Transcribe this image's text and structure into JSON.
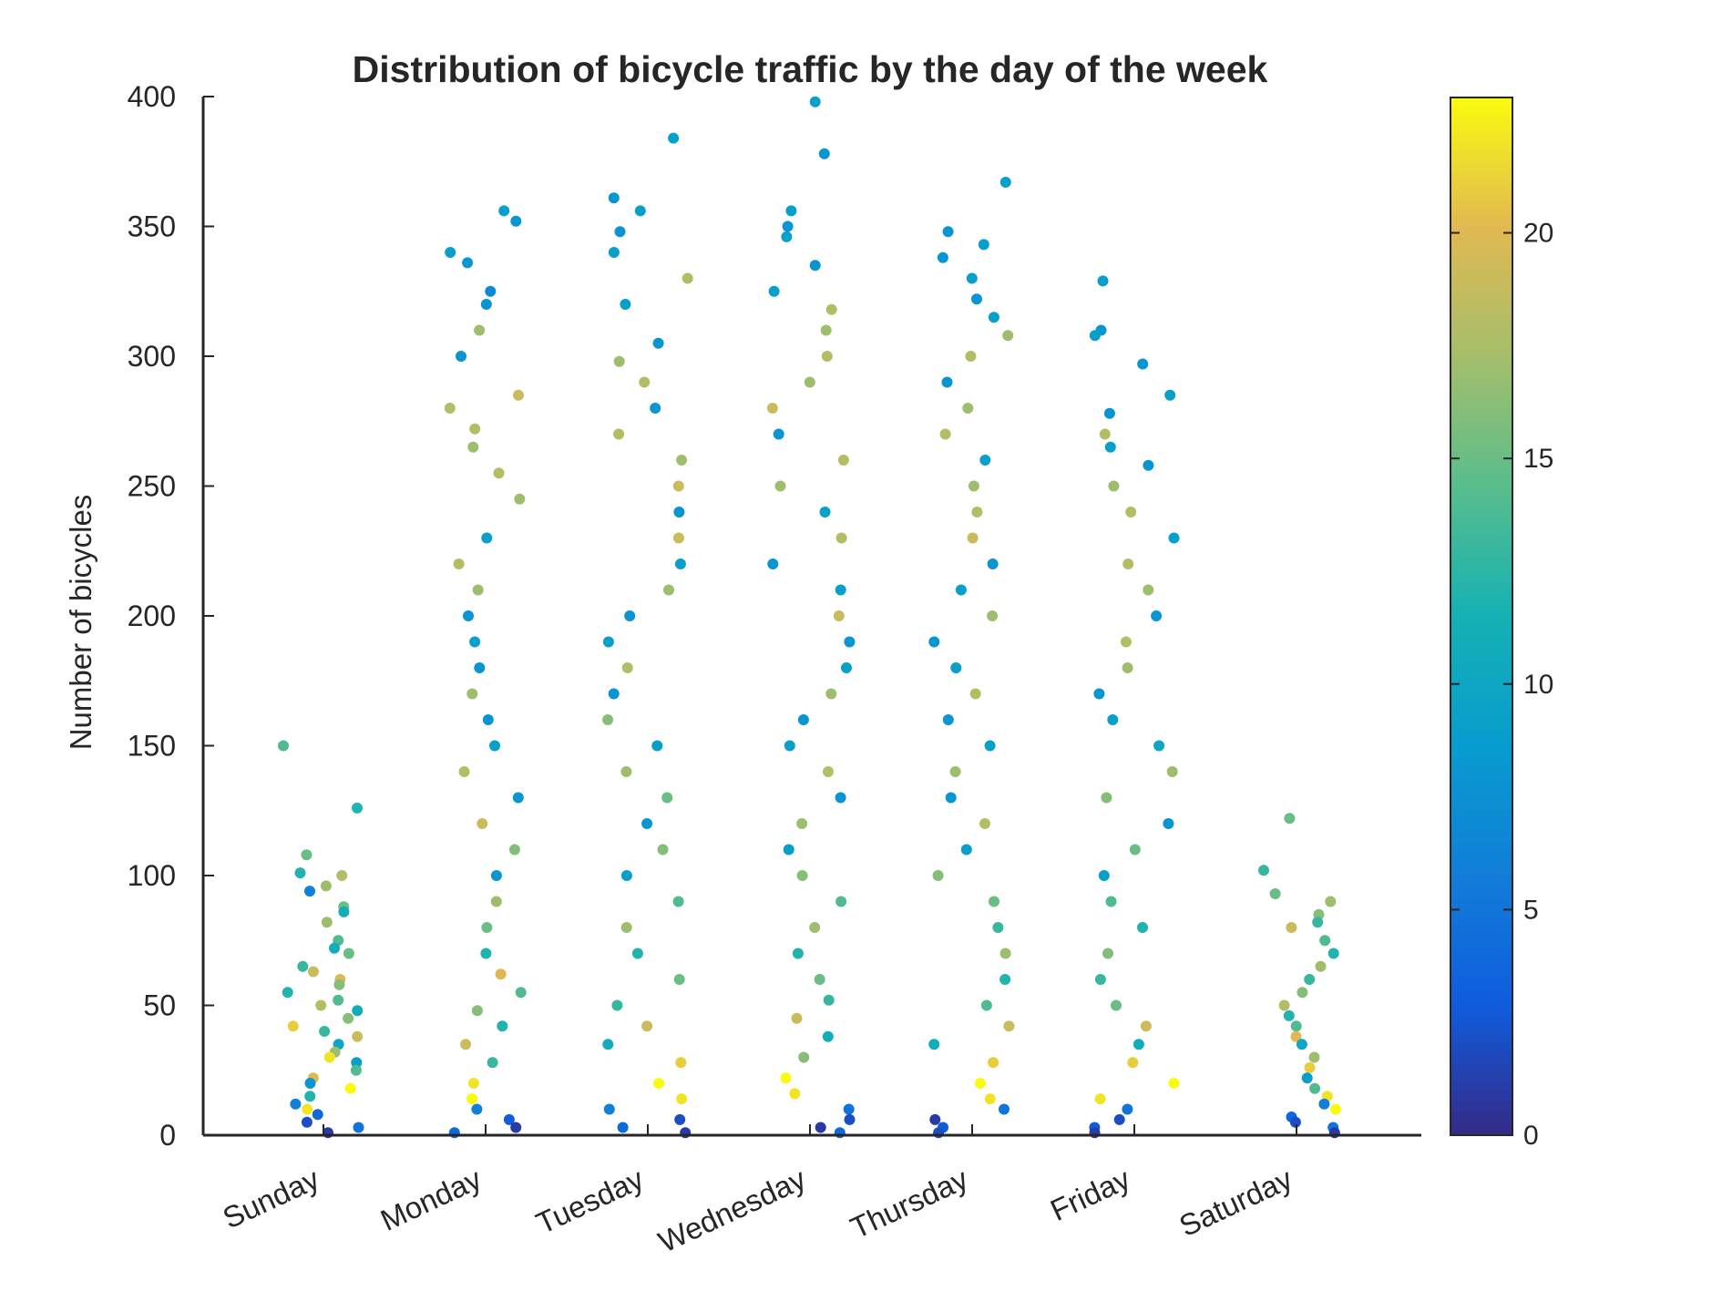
{
  "chart_data": {
    "type": "scatter",
    "title": "Distribution of bicycle traffic by the day of the week",
    "xlabel": "",
    "ylabel": "Number of bicycles",
    "categories": [
      "Sunday",
      "Monday",
      "Tuesday",
      "Wednesday",
      "Thursday",
      "Friday",
      "Saturday"
    ],
    "ylim": [
      0,
      400
    ],
    "yticks": [
      0,
      50,
      100,
      150,
      200,
      250,
      300,
      350,
      400
    ],
    "grid": false,
    "legend": "none",
    "color_variable": "hour of day",
    "colorbar": {
      "min": 0,
      "max": 23,
      "ticks": [
        0,
        5,
        10,
        15,
        20
      ],
      "colormap": "parula"
    },
    "series": [
      {
        "category": "Sunday",
        "points": [
          {
            "y": 150,
            "c": 14
          },
          {
            "y": 126,
            "c": 12
          },
          {
            "y": 108,
            "c": 15
          },
          {
            "y": 101,
            "c": 12
          },
          {
            "y": 100,
            "c": 18
          },
          {
            "y": 96,
            "c": 17
          },
          {
            "y": 94,
            "c": 6
          },
          {
            "y": 88,
            "c": 15
          },
          {
            "y": 86,
            "c": 11
          },
          {
            "y": 82,
            "c": 17
          },
          {
            "y": 75,
            "c": 14
          },
          {
            "y": 72,
            "c": 11
          },
          {
            "y": 70,
            "c": 15
          },
          {
            "y": 65,
            "c": 13
          },
          {
            "y": 63,
            "c": 19
          },
          {
            "y": 60,
            "c": 20
          },
          {
            "y": 58,
            "c": 16
          },
          {
            "y": 55,
            "c": 12
          },
          {
            "y": 52,
            "c": 14
          },
          {
            "y": 50,
            "c": 18
          },
          {
            "y": 48,
            "c": 11
          },
          {
            "y": 45,
            "c": 16
          },
          {
            "y": 42,
            "c": 21
          },
          {
            "y": 40,
            "c": 13
          },
          {
            "y": 38,
            "c": 19
          },
          {
            "y": 35,
            "c": 10
          },
          {
            "y": 32,
            "c": 17
          },
          {
            "y": 30,
            "c": 22
          },
          {
            "y": 28,
            "c": 9
          },
          {
            "y": 25,
            "c": 14
          },
          {
            "y": 22,
            "c": 20
          },
          {
            "y": 20,
            "c": 8
          },
          {
            "y": 18,
            "c": 23
          },
          {
            "y": 15,
            "c": 12
          },
          {
            "y": 12,
            "c": 6
          },
          {
            "y": 10,
            "c": 22
          },
          {
            "y": 8,
            "c": 4
          },
          {
            "y": 5,
            "c": 2
          },
          {
            "y": 3,
            "c": 5
          },
          {
            "y": 1,
            "c": 1
          }
        ]
      },
      {
        "category": "Monday",
        "points": [
          {
            "y": 356,
            "c": 9
          },
          {
            "y": 352,
            "c": 8
          },
          {
            "y": 340,
            "c": 9
          },
          {
            "y": 336,
            "c": 8
          },
          {
            "y": 325,
            "c": 7
          },
          {
            "y": 320,
            "c": 8
          },
          {
            "y": 310,
            "c": 17
          },
          {
            "y": 300,
            "c": 8
          },
          {
            "y": 285,
            "c": 19
          },
          {
            "y": 280,
            "c": 18
          },
          {
            "y": 272,
            "c": 18
          },
          {
            "y": 265,
            "c": 17
          },
          {
            "y": 255,
            "c": 18
          },
          {
            "y": 245,
            "c": 17
          },
          {
            "y": 230,
            "c": 9
          },
          {
            "y": 220,
            "c": 18
          },
          {
            "y": 210,
            "c": 17
          },
          {
            "y": 200,
            "c": 8
          },
          {
            "y": 190,
            "c": 9
          },
          {
            "y": 180,
            "c": 8
          },
          {
            "y": 170,
            "c": 17
          },
          {
            "y": 160,
            "c": 8
          },
          {
            "y": 150,
            "c": 9
          },
          {
            "y": 140,
            "c": 18
          },
          {
            "y": 130,
            "c": 8
          },
          {
            "y": 120,
            "c": 19
          },
          {
            "y": 110,
            "c": 16
          },
          {
            "y": 100,
            "c": 8
          },
          {
            "y": 90,
            "c": 17
          },
          {
            "y": 80,
            "c": 15
          },
          {
            "y": 70,
            "c": 12
          },
          {
            "y": 62,
            "c": 20
          },
          {
            "y": 55,
            "c": 14
          },
          {
            "y": 48,
            "c": 16
          },
          {
            "y": 42,
            "c": 12
          },
          {
            "y": 35,
            "c": 19
          },
          {
            "y": 28,
            "c": 13
          },
          {
            "y": 20,
            "c": 22
          },
          {
            "y": 14,
            "c": 23
          },
          {
            "y": 10,
            "c": 6
          },
          {
            "y": 6,
            "c": 3
          },
          {
            "y": 3,
            "c": 1
          },
          {
            "y": 1,
            "c": 4
          }
        ]
      },
      {
        "category": "Tuesday",
        "points": [
          {
            "y": 384,
            "c": 9
          },
          {
            "y": 361,
            "c": 8
          },
          {
            "y": 356,
            "c": 9
          },
          {
            "y": 348,
            "c": 8
          },
          {
            "y": 340,
            "c": 9
          },
          {
            "y": 330,
            "c": 18
          },
          {
            "y": 320,
            "c": 9
          },
          {
            "y": 305,
            "c": 8
          },
          {
            "y": 298,
            "c": 17
          },
          {
            "y": 290,
            "c": 18
          },
          {
            "y": 280,
            "c": 8
          },
          {
            "y": 270,
            "c": 18
          },
          {
            "y": 260,
            "c": 17
          },
          {
            "y": 250,
            "c": 19
          },
          {
            "y": 240,
            "c": 8
          },
          {
            "y": 230,
            "c": 19
          },
          {
            "y": 220,
            "c": 9
          },
          {
            "y": 210,
            "c": 17
          },
          {
            "y": 200,
            "c": 8
          },
          {
            "y": 190,
            "c": 9
          },
          {
            "y": 180,
            "c": 18
          },
          {
            "y": 170,
            "c": 8
          },
          {
            "y": 160,
            "c": 16
          },
          {
            "y": 150,
            "c": 9
          },
          {
            "y": 140,
            "c": 17
          },
          {
            "y": 130,
            "c": 15
          },
          {
            "y": 120,
            "c": 8
          },
          {
            "y": 110,
            "c": 16
          },
          {
            "y": 100,
            "c": 9
          },
          {
            "y": 90,
            "c": 14
          },
          {
            "y": 80,
            "c": 17
          },
          {
            "y": 70,
            "c": 12
          },
          {
            "y": 60,
            "c": 15
          },
          {
            "y": 50,
            "c": 13
          },
          {
            "y": 42,
            "c": 19
          },
          {
            "y": 35,
            "c": 11
          },
          {
            "y": 28,
            "c": 21
          },
          {
            "y": 20,
            "c": 23
          },
          {
            "y": 14,
            "c": 22
          },
          {
            "y": 10,
            "c": 6
          },
          {
            "y": 6,
            "c": 2
          },
          {
            "y": 3,
            "c": 4
          },
          {
            "y": 1,
            "c": 1
          }
        ]
      },
      {
        "category": "Wednesday",
        "points": [
          {
            "y": 398,
            "c": 9
          },
          {
            "y": 378,
            "c": 8
          },
          {
            "y": 356,
            "c": 9
          },
          {
            "y": 350,
            "c": 8
          },
          {
            "y": 346,
            "c": 9
          },
          {
            "y": 335,
            "c": 8
          },
          {
            "y": 325,
            "c": 9
          },
          {
            "y": 318,
            "c": 18
          },
          {
            "y": 310,
            "c": 17
          },
          {
            "y": 300,
            "c": 18
          },
          {
            "y": 290,
            "c": 17
          },
          {
            "y": 280,
            "c": 19
          },
          {
            "y": 270,
            "c": 8
          },
          {
            "y": 260,
            "c": 18
          },
          {
            "y": 250,
            "c": 17
          },
          {
            "y": 240,
            "c": 9
          },
          {
            "y": 230,
            "c": 18
          },
          {
            "y": 220,
            "c": 8
          },
          {
            "y": 210,
            "c": 9
          },
          {
            "y": 200,
            "c": 19
          },
          {
            "y": 190,
            "c": 8
          },
          {
            "y": 180,
            "c": 9
          },
          {
            "y": 170,
            "c": 17
          },
          {
            "y": 160,
            "c": 8
          },
          {
            "y": 150,
            "c": 9
          },
          {
            "y": 140,
            "c": 18
          },
          {
            "y": 130,
            "c": 8
          },
          {
            "y": 120,
            "c": 17
          },
          {
            "y": 110,
            "c": 9
          },
          {
            "y": 100,
            "c": 16
          },
          {
            "y": 90,
            "c": 14
          },
          {
            "y": 80,
            "c": 17
          },
          {
            "y": 70,
            "c": 12
          },
          {
            "y": 60,
            "c": 15
          },
          {
            "y": 52,
            "c": 13
          },
          {
            "y": 45,
            "c": 19
          },
          {
            "y": 38,
            "c": 11
          },
          {
            "y": 30,
            "c": 16
          },
          {
            "y": 22,
            "c": 23
          },
          {
            "y": 16,
            "c": 22
          },
          {
            "y": 10,
            "c": 5
          },
          {
            "y": 6,
            "c": 2
          },
          {
            "y": 3,
            "c": 1
          },
          {
            "y": 1,
            "c": 4
          }
        ]
      },
      {
        "category": "Thursday",
        "points": [
          {
            "y": 367,
            "c": 9
          },
          {
            "y": 348,
            "c": 8
          },
          {
            "y": 343,
            "c": 9
          },
          {
            "y": 338,
            "c": 8
          },
          {
            "y": 330,
            "c": 9
          },
          {
            "y": 322,
            "c": 8
          },
          {
            "y": 315,
            "c": 9
          },
          {
            "y": 308,
            "c": 17
          },
          {
            "y": 300,
            "c": 18
          },
          {
            "y": 290,
            "c": 8
          },
          {
            "y": 280,
            "c": 17
          },
          {
            "y": 270,
            "c": 18
          },
          {
            "y": 260,
            "c": 9
          },
          {
            "y": 250,
            "c": 17
          },
          {
            "y": 240,
            "c": 18
          },
          {
            "y": 230,
            "c": 19
          },
          {
            "y": 220,
            "c": 8
          },
          {
            "y": 210,
            "c": 9
          },
          {
            "y": 200,
            "c": 17
          },
          {
            "y": 190,
            "c": 8
          },
          {
            "y": 180,
            "c": 9
          },
          {
            "y": 170,
            "c": 18
          },
          {
            "y": 160,
            "c": 8
          },
          {
            "y": 150,
            "c": 9
          },
          {
            "y": 140,
            "c": 17
          },
          {
            "y": 130,
            "c": 8
          },
          {
            "y": 120,
            "c": 18
          },
          {
            "y": 110,
            "c": 9
          },
          {
            "y": 100,
            "c": 16
          },
          {
            "y": 90,
            "c": 15
          },
          {
            "y": 80,
            "c": 13
          },
          {
            "y": 70,
            "c": 17
          },
          {
            "y": 60,
            "c": 12
          },
          {
            "y": 50,
            "c": 14
          },
          {
            "y": 42,
            "c": 19
          },
          {
            "y": 35,
            "c": 11
          },
          {
            "y": 28,
            "c": 21
          },
          {
            "y": 20,
            "c": 23
          },
          {
            "y": 14,
            "c": 22
          },
          {
            "y": 10,
            "c": 5
          },
          {
            "y": 6,
            "c": 1
          },
          {
            "y": 3,
            "c": 3
          },
          {
            "y": 1,
            "c": 2
          }
        ]
      },
      {
        "category": "Friday",
        "points": [
          {
            "y": 329,
            "c": 9
          },
          {
            "y": 310,
            "c": 8
          },
          {
            "y": 308,
            "c": 9
          },
          {
            "y": 297,
            "c": 8
          },
          {
            "y": 285,
            "c": 9
          },
          {
            "y": 278,
            "c": 8
          },
          {
            "y": 270,
            "c": 18
          },
          {
            "y": 265,
            "c": 9
          },
          {
            "y": 258,
            "c": 8
          },
          {
            "y": 250,
            "c": 17
          },
          {
            "y": 240,
            "c": 18
          },
          {
            "y": 230,
            "c": 9
          },
          {
            "y": 220,
            "c": 18
          },
          {
            "y": 210,
            "c": 17
          },
          {
            "y": 200,
            "c": 8
          },
          {
            "y": 190,
            "c": 18
          },
          {
            "y": 180,
            "c": 17
          },
          {
            "y": 170,
            "c": 8
          },
          {
            "y": 160,
            "c": 9
          },
          {
            "y": 150,
            "c": 10
          },
          {
            "y": 140,
            "c": 17
          },
          {
            "y": 130,
            "c": 16
          },
          {
            "y": 120,
            "c": 8
          },
          {
            "y": 110,
            "c": 15
          },
          {
            "y": 100,
            "c": 9
          },
          {
            "y": 90,
            "c": 14
          },
          {
            "y": 80,
            "c": 12
          },
          {
            "y": 70,
            "c": 16
          },
          {
            "y": 60,
            "c": 13
          },
          {
            "y": 50,
            "c": 15
          },
          {
            "y": 42,
            "c": 19
          },
          {
            "y": 35,
            "c": 11
          },
          {
            "y": 28,
            "c": 21
          },
          {
            "y": 20,
            "c": 23
          },
          {
            "y": 14,
            "c": 22
          },
          {
            "y": 10,
            "c": 5
          },
          {
            "y": 6,
            "c": 2
          },
          {
            "y": 3,
            "c": 3
          },
          {
            "y": 1,
            "c": 1
          }
        ]
      },
      {
        "category": "Saturday",
        "points": [
          {
            "y": 122,
            "c": 15
          },
          {
            "y": 102,
            "c": 13
          },
          {
            "y": 93,
            "c": 15
          },
          {
            "y": 90,
            "c": 17
          },
          {
            "y": 85,
            "c": 16
          },
          {
            "y": 82,
            "c": 13
          },
          {
            "y": 80,
            "c": 19
          },
          {
            "y": 75,
            "c": 14
          },
          {
            "y": 70,
            "c": 12
          },
          {
            "y": 65,
            "c": 17
          },
          {
            "y": 60,
            "c": 13
          },
          {
            "y": 55,
            "c": 16
          },
          {
            "y": 50,
            "c": 18
          },
          {
            "y": 46,
            "c": 12
          },
          {
            "y": 42,
            "c": 14
          },
          {
            "y": 38,
            "c": 20
          },
          {
            "y": 35,
            "c": 10
          },
          {
            "y": 30,
            "c": 17
          },
          {
            "y": 26,
            "c": 21
          },
          {
            "y": 22,
            "c": 9
          },
          {
            "y": 18,
            "c": 14
          },
          {
            "y": 15,
            "c": 22
          },
          {
            "y": 12,
            "c": 6
          },
          {
            "y": 10,
            "c": 23
          },
          {
            "y": 7,
            "c": 4
          },
          {
            "y": 5,
            "c": 2
          },
          {
            "y": 3,
            "c": 5
          },
          {
            "y": 1,
            "c": 1
          }
        ]
      }
    ]
  }
}
